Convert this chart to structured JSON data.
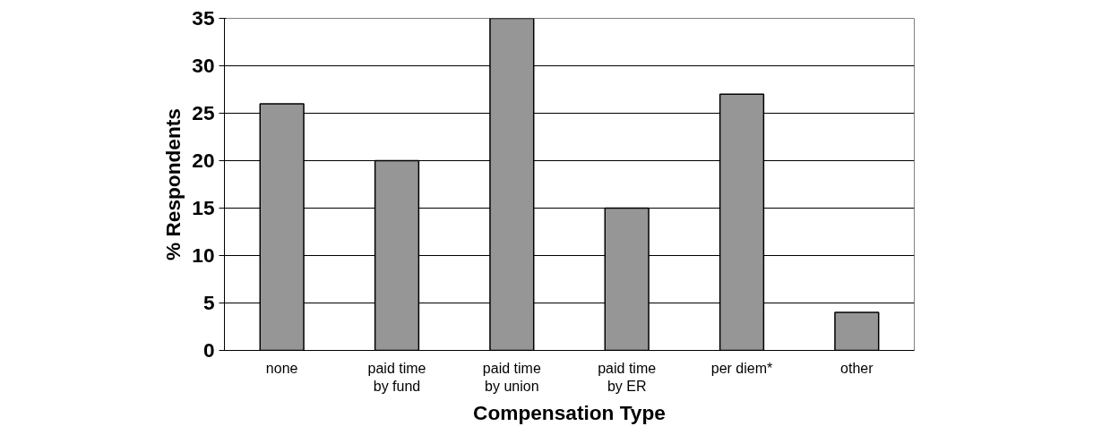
{
  "chart_data": {
    "type": "bar",
    "categories": [
      "none",
      "paid time\nby fund",
      "paid time\nby union",
      "paid time\nby ER",
      "per diem*",
      "other"
    ],
    "values": [
      26,
      20,
      35,
      15,
      27,
      4
    ],
    "color": "#969696",
    "xlabel": "Compensation Type",
    "ylabel": "% Respondents",
    "ylim": [
      0,
      35
    ],
    "yticks": [
      0,
      5,
      10,
      15,
      20,
      25,
      30,
      35
    ],
    "grid": "y"
  }
}
